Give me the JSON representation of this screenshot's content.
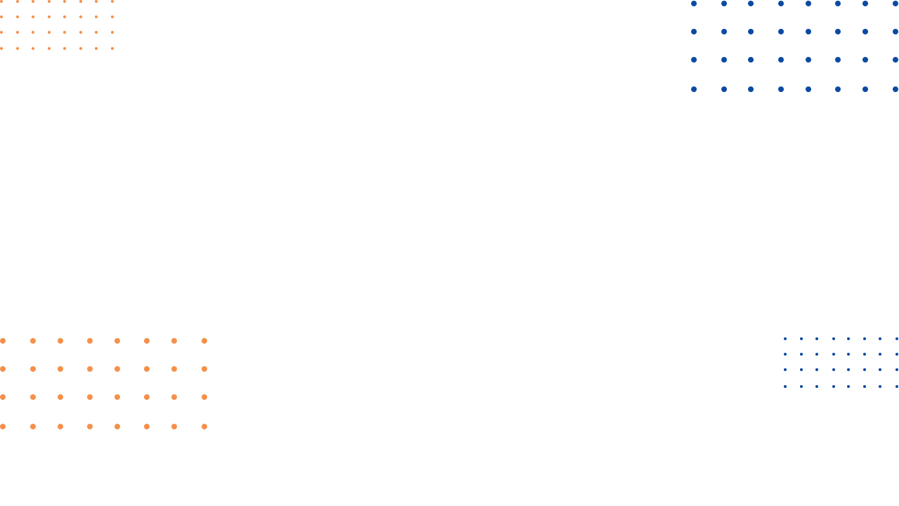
{
  "decorations": {
    "colors": {
      "background": "#ffffff",
      "orange": "#f5904a",
      "blue": "#0b4aa2"
    },
    "dot_grids": [
      {
        "name": "top-left-orange-dots",
        "color": "orange",
        "rows": 4,
        "cols": 8
      },
      {
        "name": "top-right-blue-dots",
        "color": "blue",
        "rows": 4,
        "cols": 8
      },
      {
        "name": "bottom-left-orange-dots",
        "color": "orange",
        "rows": 4,
        "cols": 8
      },
      {
        "name": "bottom-right-blue-dots",
        "color": "blue",
        "rows": 4,
        "cols": 8
      }
    ]
  }
}
